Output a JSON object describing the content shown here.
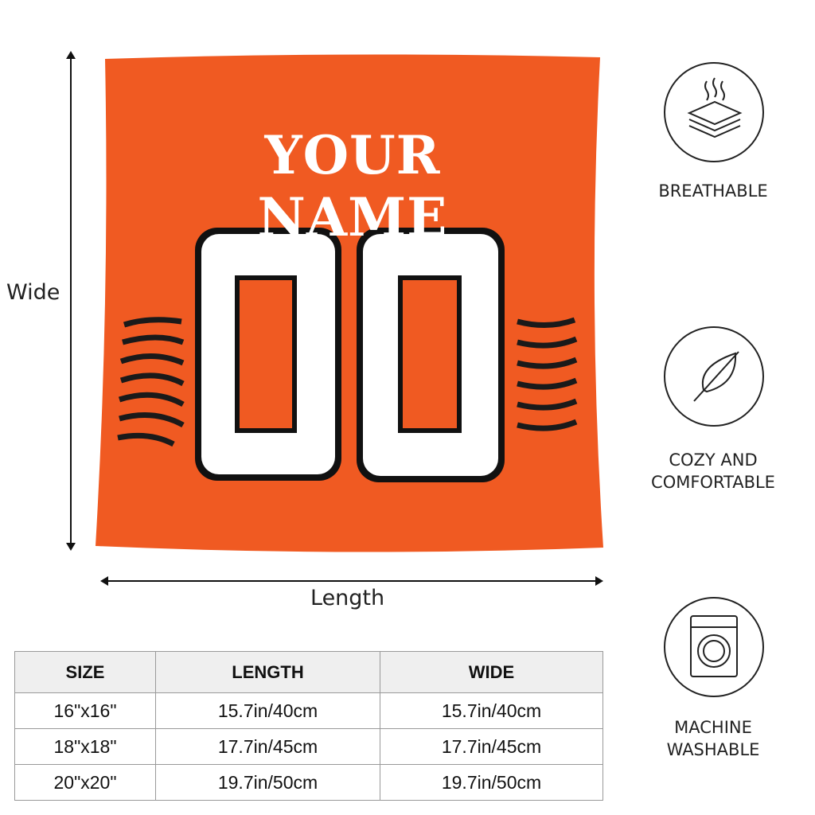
{
  "dimensions": {
    "wide_label": "Wide",
    "length_label": "Length"
  },
  "pillow": {
    "name_text": "YOUR NAME",
    "number_text": "00",
    "colors": {
      "body": "#f05a22",
      "text": "#ffffff",
      "outline": "#111111"
    }
  },
  "features": [
    {
      "icon": "breathable-layers-icon",
      "label": "BREATHABLE"
    },
    {
      "icon": "feather-icon",
      "label": "COZY AND COMFORTABLE"
    },
    {
      "icon": "washing-machine-icon",
      "label": "MACHINE WASHABLE"
    }
  ],
  "size_table": {
    "headers": [
      "SIZE",
      "LENGTH",
      "WIDE"
    ],
    "rows": [
      [
        "16\"x16\"",
        "15.7in/40cm",
        "15.7in/40cm"
      ],
      [
        "18\"x18\"",
        "17.7in/45cm",
        "17.7in/45cm"
      ],
      [
        "20\"x20\"",
        "19.7in/50cm",
        "19.7in/50cm"
      ]
    ]
  }
}
